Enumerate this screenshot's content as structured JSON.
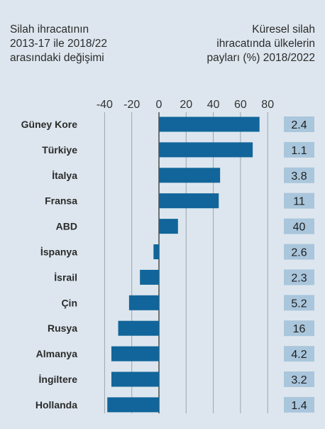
{
  "header": {
    "left_lines": [
      "Silah ihracatının",
      "2013-17 ile 2018/22",
      "arasındaki değişimi"
    ],
    "right_lines": [
      "Küresel silah",
      "ihracatında ülkelerin",
      "payları (%) 2018/2022"
    ]
  },
  "colors": {
    "background": "#dde6ee",
    "bar": "#11659a",
    "share_box": "#a9c6dc",
    "gridline": "#9aa5ad",
    "zero_line": "#333333"
  },
  "chart_data": {
    "type": "bar",
    "orientation": "horizontal",
    "categories": [
      "Güney Kore",
      "Türkiye",
      "İtalya",
      "Fransa",
      "ABD",
      "İspanya",
      "İsrail",
      "Çin",
      "Rusya",
      "Almanya",
      "İngiltere",
      "Hollanda"
    ],
    "values": [
      74,
      69,
      45,
      44,
      14,
      -4,
      -14,
      -22,
      -30,
      -35,
      -35,
      -38
    ],
    "shares": [
      "2.4",
      "1.1",
      "3.8",
      "11",
      "40",
      "2.6",
      "2.3",
      "5.2",
      "16",
      "4.2",
      "3.2",
      "1.4"
    ],
    "xticks": [
      -40,
      -20,
      0,
      20,
      40,
      60,
      80
    ],
    "xtick_labels": [
      "-40",
      "-20",
      "0",
      "20",
      "40",
      "60",
      "80"
    ],
    "xlim": [
      -40,
      80
    ],
    "grid": true
  }
}
